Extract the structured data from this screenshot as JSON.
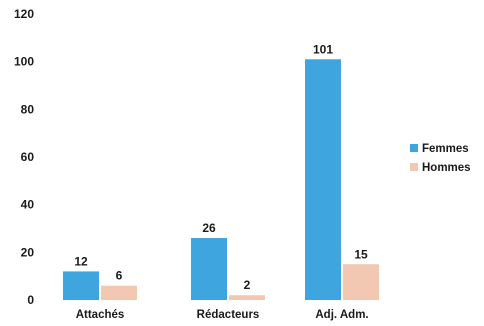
{
  "chart_data": {
    "type": "bar",
    "categories": [
      "Attachés",
      "Rédacteurs",
      "Adj. Adm."
    ],
    "series": [
      {
        "name": "Femmes",
        "values": [
          12,
          26,
          101
        ],
        "color": "#3fa5df"
      },
      {
        "name": "Hommes",
        "values": [
          6,
          2,
          15
        ],
        "color": "#f2c8b2"
      }
    ],
    "ylim": [
      0,
      120
    ],
    "yticks": [
      0,
      20,
      40,
      60,
      80,
      100,
      120
    ],
    "grid": false,
    "legend_position": "right",
    "title": "",
    "xlabel": "",
    "ylabel": ""
  }
}
